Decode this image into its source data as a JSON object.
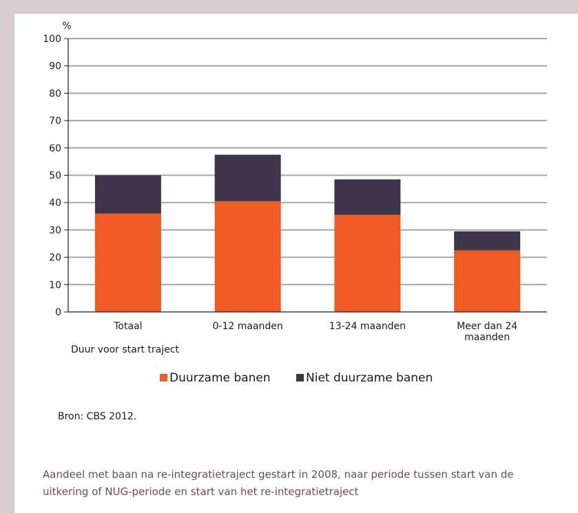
{
  "chart_data": {
    "type": "bar",
    "stacked": true,
    "y_unit_label": "%",
    "xlabel": "Duur voor start traject",
    "ylim": [
      0,
      100
    ],
    "yticks": [
      0,
      10,
      20,
      30,
      40,
      50,
      60,
      70,
      80,
      90,
      100
    ],
    "grid": true,
    "categories": [
      [
        "Totaal"
      ],
      [
        "0-12 maanden"
      ],
      [
        "13-24 maanden"
      ],
      [
        "Meer dan 24",
        "maanden"
      ]
    ],
    "series": [
      {
        "name": "Duurzame banen",
        "color": "#f05a24",
        "values": [
          36,
          40.5,
          35.5,
          22.5
        ]
      },
      {
        "name": "Niet duurzame banen",
        "color": "#40344a",
        "values": [
          14,
          17,
          13,
          7
        ]
      }
    ],
    "legend_position": "bottom"
  },
  "source": "Bron: CBS 2012.",
  "caption": "Aandeel met baan na re-integratietraject gestart in 2008, naar periode tussen start van de uitkering of NUG-periode en start van het re-integratietraject"
}
